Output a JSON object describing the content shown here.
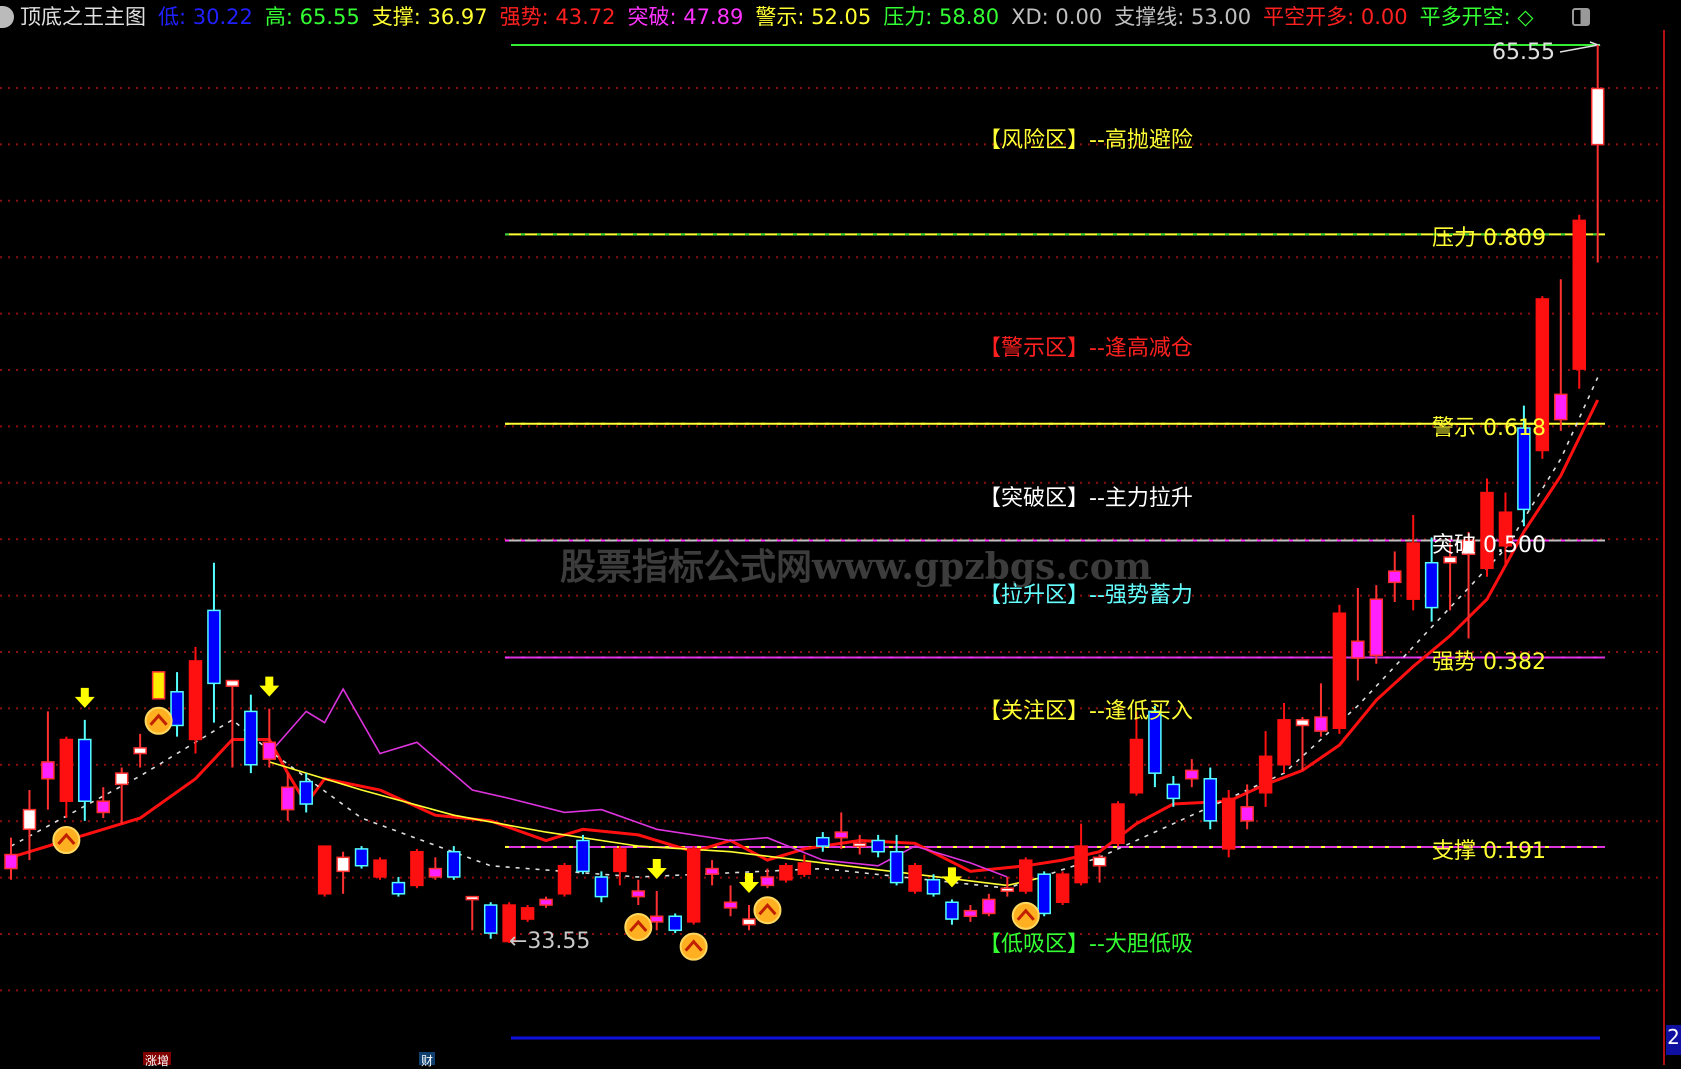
{
  "header": {
    "title": "顶底之王主图",
    "items": [
      {
        "label": "低: 30.22",
        "color": "#2020ff"
      },
      {
        "label": "高: 65.55",
        "color": "#33ff33"
      },
      {
        "label": "支撑: 36.97",
        "color": "#ffff33"
      },
      {
        "label": "强势: 43.72",
        "color": "#ff2020"
      },
      {
        "label": "突破: 47.89",
        "color": "#ff33ff"
      },
      {
        "label": "警示: 52.05",
        "color": "#ffff33"
      },
      {
        "label": "压力: 58.80",
        "color": "#33ff33"
      },
      {
        "label": "XD: 0.00",
        "color": "#c0c0c0"
      },
      {
        "label": "支撑线: 53.00",
        "color": "#c0c0c0"
      },
      {
        "label": "平空开多: 0.00",
        "color": "#ff2020"
      },
      {
        "label": "平多开空: ◇",
        "color": "#33ff33"
      }
    ]
  },
  "zones": [
    {
      "label": "【风险区】--高抛避险",
      "color": "#ffff33"
    },
    {
      "label": "【警示区】--逢高减仓",
      "color": "#ff2020"
    },
    {
      "label": "【突破区】--主力拉升",
      "color": "#ffffff"
    },
    {
      "label": "【拉升区】--强势蓄力",
      "color": "#66ffff"
    },
    {
      "label": "【关注区】--逢低买入",
      "color": "#ffff33"
    },
    {
      "label": "【低吸区】--大胆低吸",
      "color": "#33ff33"
    }
  ],
  "levels": [
    {
      "label": "压力 0.809",
      "value": 58.8,
      "color": "#ffff33",
      "dash": "#33cc33"
    },
    {
      "label": "警示 0.618",
      "value": 52.05,
      "color": "#ffff33",
      "dash": "#ffff33"
    },
    {
      "label": "突破 0.500",
      "value": 47.89,
      "color": "#c0c0c0",
      "dash": "#ff33ff"
    },
    {
      "label": "强势 0.382",
      "value": 43.72,
      "color": "#ff33ff",
      "dash": "#ff33ff"
    },
    {
      "label": "支撑 0.191",
      "value": 36.97,
      "color": "#ff33ff",
      "dash": "#ffff33"
    }
  ],
  "watermark": "股票指标公式网www.gpzbgs.com",
  "bottom_tabs": [
    "涨增",
    "财"
  ],
  "axis_badge": "2",
  "chart_data": {
    "type": "candlestick",
    "high_label": "65.55",
    "low_label": "←33.55",
    "ylim": [
      30.22,
      65.55
    ],
    "grid": true,
    "candles_ohlc_style": [
      [
        36.2,
        37.3,
        35.8,
        36.7,
        "m"
      ],
      [
        38.3,
        39.0,
        36.5,
        37.6,
        "w"
      ],
      [
        40.0,
        41.8,
        38.3,
        39.4,
        "m"
      ],
      [
        38.6,
        40.9,
        38.0,
        40.8,
        "r"
      ],
      [
        40.8,
        41.5,
        37.9,
        38.6,
        "b"
      ],
      [
        38.6,
        39.1,
        38.0,
        38.2,
        "m"
      ],
      [
        39.2,
        39.8,
        37.8,
        39.6,
        "w"
      ],
      [
        40.3,
        41.0,
        39.8,
        40.5,
        "w"
      ],
      [
        43.21,
        43.21,
        42.25,
        42.25,
        "y"
      ],
      [
        42.5,
        43.2,
        40.9,
        41.3,
        "b"
      ],
      [
        40.8,
        44.1,
        40.3,
        43.6,
        "r"
      ],
      [
        45.4,
        47.1,
        41.4,
        42.8,
        "b"
      ],
      [
        42.9,
        42.9,
        39.8,
        42.7,
        "w"
      ],
      [
        41.8,
        42.4,
        39.6,
        39.9,
        "b"
      ],
      [
        40.7,
        41.9,
        39.8,
        40.1,
        "m"
      ],
      [
        39.1,
        39.6,
        37.9,
        38.3,
        "m"
      ],
      [
        39.3,
        39.6,
        38.2,
        38.5,
        "b"
      ],
      [
        35.3,
        37.0,
        35.2,
        37.0,
        "r"
      ],
      [
        36.6,
        36.8,
        35.3,
        36.1,
        "w"
      ],
      [
        36.9,
        37.0,
        36.2,
        36.3,
        "b"
      ],
      [
        35.9,
        36.6,
        35.8,
        36.5,
        "r"
      ],
      [
        35.7,
        35.9,
        35.2,
        35.3,
        "b"
      ],
      [
        35.6,
        36.9,
        35.5,
        36.8,
        "r"
      ],
      [
        36.2,
        36.6,
        35.8,
        35.9,
        "m"
      ],
      [
        36.8,
        37.0,
        35.8,
        35.9,
        "b"
      ],
      [
        35.1,
        35.2,
        34.0,
        35.2,
        "w"
      ],
      [
        34.9,
        35.0,
        33.7,
        33.9,
        "b"
      ],
      [
        33.6,
        35.0,
        33.55,
        34.9,
        "r"
      ],
      [
        34.4,
        34.9,
        34.3,
        34.8,
        "r"
      ],
      [
        34.9,
        35.2,
        34.8,
        35.1,
        "m"
      ],
      [
        35.3,
        36.4,
        35.2,
        36.3,
        "r"
      ],
      [
        37.2,
        37.4,
        36.0,
        36.1,
        "b"
      ],
      [
        35.9,
        36.1,
        35.0,
        35.2,
        "b"
      ],
      [
        36.1,
        37.0,
        35.6,
        36.9,
        "r"
      ],
      [
        35.4,
        35.8,
        34.9,
        35.2,
        "m"
      ],
      [
        34.5,
        35.4,
        34.0,
        34.3,
        "m"
      ],
      [
        34.5,
        34.6,
        33.9,
        34.0,
        "b"
      ],
      [
        34.3,
        37.0,
        34.2,
        36.9,
        "r"
      ],
      [
        36.2,
        36.5,
        35.6,
        36.0,
        "m"
      ],
      [
        35.0,
        35.6,
        34.5,
        34.8,
        "m"
      ],
      [
        34.4,
        34.9,
        34.0,
        34.2,
        "w"
      ],
      [
        35.9,
        36.2,
        35.5,
        35.6,
        "m"
      ],
      [
        35.8,
        36.4,
        35.7,
        36.3,
        "r"
      ],
      [
        36.0,
        36.7,
        35.9,
        36.4,
        "r"
      ],
      [
        37.3,
        37.5,
        36.8,
        37.0,
        "b"
      ],
      [
        37.5,
        38.2,
        36.9,
        37.3,
        "m"
      ],
      [
        37.1,
        37.4,
        36.7,
        37.0,
        "w"
      ],
      [
        37.2,
        37.4,
        36.6,
        36.8,
        "b"
      ],
      [
        36.8,
        37.4,
        35.6,
        35.7,
        "b"
      ],
      [
        35.4,
        36.4,
        35.3,
        36.3,
        "r"
      ],
      [
        35.8,
        36.0,
        35.2,
        35.3,
        "b"
      ],
      [
        35.0,
        35.1,
        34.2,
        34.4,
        "b"
      ],
      [
        34.7,
        34.9,
        34.3,
        34.5,
        "m"
      ],
      [
        35.1,
        35.3,
        34.5,
        34.6,
        "m"
      ],
      [
        35.4,
        35.9,
        35.2,
        35.5,
        "w"
      ],
      [
        35.4,
        36.6,
        35.3,
        36.5,
        "r"
      ],
      [
        36.0,
        36.1,
        34.5,
        34.6,
        "b"
      ],
      [
        35.0,
        36.1,
        34.9,
        36.0,
        "r"
      ],
      [
        35.7,
        37.8,
        35.6,
        37.0,
        "r"
      ],
      [
        36.3,
        36.7,
        35.7,
        36.6,
        "w"
      ],
      [
        37.1,
        38.6,
        37.0,
        38.5,
        "r"
      ],
      [
        38.9,
        41.8,
        38.8,
        40.8,
        "r"
      ],
      [
        41.8,
        42.0,
        39.1,
        39.6,
        "b"
      ],
      [
        39.2,
        39.5,
        38.4,
        38.7,
        "b"
      ],
      [
        39.7,
        40.1,
        39.1,
        39.4,
        "m"
      ],
      [
        39.4,
        39.8,
        37.6,
        37.9,
        "b"
      ],
      [
        36.9,
        39.0,
        36.6,
        38.7,
        "r"
      ],
      [
        37.9,
        39.2,
        37.6,
        38.4,
        "m"
      ],
      [
        38.9,
        41.1,
        38.4,
        40.2,
        "r"
      ],
      [
        39.9,
        42.1,
        39.6,
        41.5,
        "r"
      ],
      [
        41.5,
        41.6,
        39.7,
        41.3,
        "w"
      ],
      [
        41.1,
        42.8,
        40.9,
        41.6,
        "m"
      ],
      [
        41.2,
        45.6,
        41.0,
        45.3,
        "r"
      ],
      [
        44.3,
        46.2,
        42.9,
        43.7,
        "m"
      ],
      [
        43.8,
        46.3,
        43.5,
        45.8,
        "m"
      ],
      [
        46.4,
        47.5,
        45.7,
        46.8,
        "m"
      ],
      [
        45.8,
        48.8,
        45.4,
        47.8,
        "r"
      ],
      [
        47.1,
        48.0,
        45.0,
        45.5,
        "b"
      ],
      [
        47.1,
        47.8,
        45.4,
        47.3,
        "w"
      ],
      [
        47.4,
        48.2,
        44.4,
        47.9,
        "w"
      ],
      [
        46.9,
        50.1,
        46.6,
        49.6,
        "r"
      ],
      [
        47.7,
        49.6,
        47.0,
        48.9,
        "r"
      ],
      [
        51.9,
        52.7,
        48.4,
        49.0,
        "b"
      ],
      [
        51.1,
        56.6,
        50.8,
        56.5,
        "r"
      ],
      [
        52.2,
        57.2,
        51.8,
        53.1,
        "m"
      ],
      [
        54.0,
        59.5,
        53.3,
        59.3,
        "r"
      ],
      [
        62.0,
        65.55,
        57.8,
        64.0,
        "w"
      ]
    ],
    "signals_up": [
      3,
      8,
      34,
      37,
      41,
      55
    ],
    "signals_down": [
      4,
      14,
      35,
      40,
      51
    ],
    "lines": [
      {
        "color": "#ff1010",
        "points": [
          [
            0,
            36.6
          ],
          [
            7,
            38.0
          ],
          [
            10,
            39.4
          ],
          [
            12,
            40.8
          ],
          [
            14,
            40.8
          ],
          [
            15,
            39.6
          ],
          [
            16,
            38.5
          ],
          [
            17,
            39.4
          ],
          [
            20,
            39.0
          ],
          [
            23,
            38.1
          ],
          [
            26,
            37.9
          ],
          [
            29,
            37.2
          ],
          [
            31,
            37.6
          ],
          [
            34,
            37.4
          ],
          [
            37,
            36.8
          ],
          [
            39,
            37.2
          ],
          [
            41,
            36.5
          ],
          [
            43,
            36.9
          ],
          [
            46,
            37.2
          ],
          [
            49,
            37.1
          ],
          [
            52,
            36.1
          ],
          [
            55,
            36.3
          ],
          [
            57,
            36.5
          ],
          [
            59,
            36.8
          ],
          [
            61,
            37.8
          ],
          [
            63,
            38.5
          ],
          [
            66,
            38.6
          ],
          [
            68,
            39.2
          ],
          [
            70,
            39.7
          ],
          [
            72,
            40.6
          ],
          [
            74,
            42.2
          ],
          [
            76,
            43.4
          ],
          [
            78,
            44.5
          ],
          [
            80,
            45.8
          ],
          [
            82,
            48.2
          ],
          [
            84,
            50.2
          ],
          [
            86,
            52.9
          ]
        ]
      },
      {
        "color": "#dddddd",
        "dashed": true,
        "points": [
          [
            0,
            37.0
          ],
          [
            7,
            39.5
          ],
          [
            12,
            41.5
          ],
          [
            14,
            40.4
          ],
          [
            19,
            38.0
          ],
          [
            26,
            36.3
          ],
          [
            34,
            35.9
          ],
          [
            44,
            36.2
          ],
          [
            54,
            35.5
          ],
          [
            59,
            36.6
          ],
          [
            63,
            37.8
          ],
          [
            69,
            39.6
          ],
          [
            73,
            42.0
          ],
          [
            77,
            44.8
          ],
          [
            81,
            47.6
          ],
          [
            84,
            50.8
          ],
          [
            86,
            53.7
          ]
        ]
      },
      {
        "color": "#ffff33",
        "points": [
          [
            14,
            40.0
          ],
          [
            19,
            39.0
          ],
          [
            24,
            38.1
          ],
          [
            29,
            37.5
          ],
          [
            34,
            37.0
          ],
          [
            39,
            36.8
          ],
          [
            44,
            36.4
          ],
          [
            49,
            36.0
          ],
          [
            54,
            35.6
          ],
          [
            56,
            35.9
          ]
        ]
      },
      {
        "color": "#dd33dd",
        "points": [
          [
            14,
            40.3
          ],
          [
            16,
            41.8
          ],
          [
            17,
            41.4
          ],
          [
            18,
            42.6
          ],
          [
            20,
            40.3
          ],
          [
            22,
            40.7
          ],
          [
            25,
            39.0
          ],
          [
            27,
            38.7
          ],
          [
            30,
            38.2
          ],
          [
            32,
            38.3
          ],
          [
            35,
            37.6
          ],
          [
            39,
            37.2
          ],
          [
            41,
            37.3
          ],
          [
            44,
            36.5
          ],
          [
            47,
            36.3
          ],
          [
            49,
            37.0
          ],
          [
            52,
            36.4
          ],
          [
            54,
            35.9
          ]
        ]
      }
    ]
  }
}
